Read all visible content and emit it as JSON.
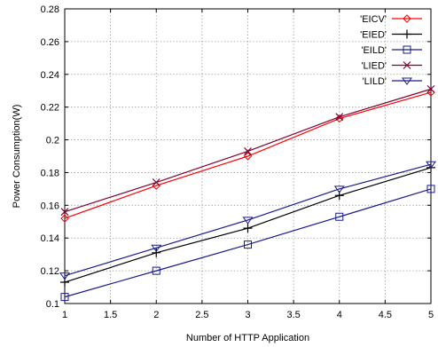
{
  "chart_data": {
    "type": "line",
    "title": "",
    "xlabel": "Number of HTTP Application",
    "ylabel": "Power Consumption(W)",
    "xlim": [
      1,
      5
    ],
    "ylim": [
      0.1,
      0.28
    ],
    "xticks": [
      1,
      1.5,
      2,
      2.5,
      3,
      3.5,
      4,
      4.5,
      5
    ],
    "yticks": [
      0.1,
      0.12,
      0.14,
      0.16,
      0.18,
      0.2,
      0.22,
      0.24,
      0.26,
      0.28
    ],
    "xtick_labels": [
      "1",
      "1.5",
      "2",
      "2.5",
      "3",
      "3.5",
      "4",
      "4.5",
      "5"
    ],
    "ytick_labels": [
      "0.1",
      "0.12",
      "0.14",
      "0.16",
      "0.18",
      "0.2",
      "0.22",
      "0.24",
      "0.26",
      "0.28"
    ],
    "grid": true,
    "legend_position": "top-right",
    "x": [
      1,
      2,
      3,
      4,
      5
    ],
    "series": [
      {
        "name": "'EICV'",
        "values": [
          0.152,
          0.172,
          0.19,
          0.213,
          0.229
        ],
        "color": "#ff0000",
        "marker": "diamond"
      },
      {
        "name": "'EIED'",
        "values": [
          0.113,
          0.131,
          0.146,
          0.166,
          0.183
        ],
        "color": "#000000",
        "marker": "plus"
      },
      {
        "name": "'EILD'",
        "values": [
          0.104,
          0.12,
          0.136,
          0.153,
          0.17
        ],
        "color": "#1a1a8c",
        "marker": "square"
      },
      {
        "name": "'LIED'",
        "values": [
          0.156,
          0.174,
          0.193,
          0.214,
          0.231
        ],
        "color": "#800033",
        "marker": "x"
      },
      {
        "name": "'LILD'",
        "values": [
          0.117,
          0.134,
          0.151,
          0.17,
          0.185
        ],
        "color": "#1a1a8c",
        "marker": "triangle-down"
      }
    ]
  }
}
